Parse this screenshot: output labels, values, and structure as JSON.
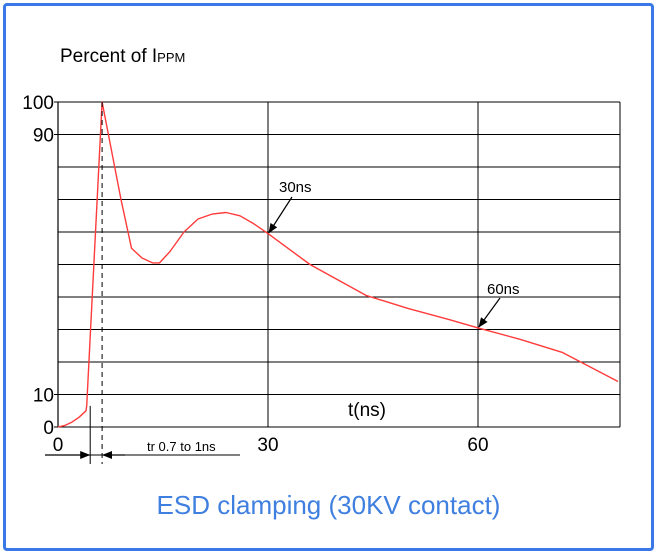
{
  "caption": "ESD clamping (30KV contact)",
  "colors": {
    "border": "#3b78e7",
    "caption": "#3f7fe0",
    "curve": "#ff3b3b",
    "grid": "#000000"
  },
  "chart_data": {
    "type": "line",
    "title": "",
    "ylabel_main": "Percent of I",
    "ylabel_sub": "PPM",
    "xlabel": "t(ns)",
    "xlim": [
      0,
      80
    ],
    "ylim": [
      0,
      100
    ],
    "x_tick_values": [
      0,
      30,
      60
    ],
    "x_tick_labels": [
      "0",
      "30",
      "60"
    ],
    "y_tick_values": [
      0,
      10,
      90,
      100
    ],
    "y_tick_labels": [
      "0",
      "10",
      "90",
      "100"
    ],
    "grid": true,
    "series": [
      {
        "points": [
          [
            0,
            0
          ],
          [
            1,
            0.5
          ],
          [
            2,
            1.5
          ],
          [
            3,
            3
          ],
          [
            4,
            5
          ],
          [
            4.1,
            6.5
          ],
          [
            6.3,
            100
          ],
          [
            9,
            70
          ],
          [
            10.5,
            55
          ],
          [
            12,
            52
          ],
          [
            13.5,
            50.5
          ],
          [
            14.5,
            50.5
          ],
          [
            16,
            54
          ],
          [
            18,
            60
          ],
          [
            20,
            64
          ],
          [
            22,
            65.5
          ],
          [
            24,
            66
          ],
          [
            26,
            65
          ],
          [
            28,
            62.5
          ],
          [
            30,
            59.5
          ],
          [
            36,
            50
          ],
          [
            44,
            40.5
          ],
          [
            50,
            36.5
          ],
          [
            56,
            33
          ],
          [
            60,
            30.5
          ],
          [
            66,
            27
          ],
          [
            72,
            23
          ],
          [
            80,
            14
          ]
        ]
      }
    ],
    "annotations": [
      {
        "text": "30ns",
        "x": 30,
        "y": 59.5
      },
      {
        "text": "60ns",
        "x": 60,
        "y": 30.5
      }
    ],
    "rise_time_note": "tr 0.7 to 1ns"
  }
}
